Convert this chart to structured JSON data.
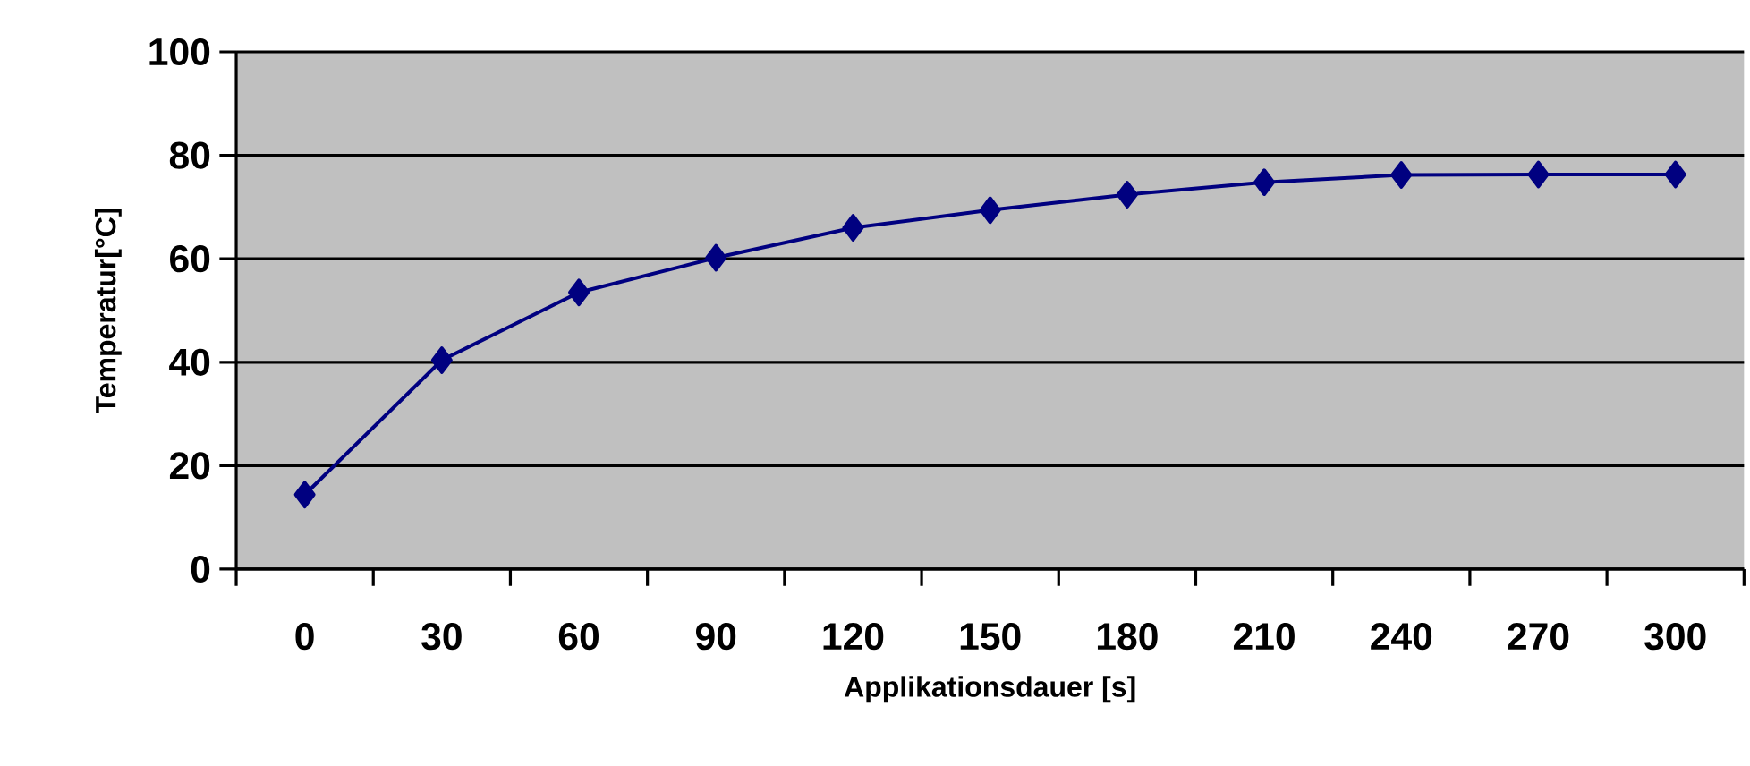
{
  "chart_data": {
    "type": "line",
    "xlabel": "Applikationsdauer [s]",
    "ylabel": "Temperatur[°C]",
    "categories": [
      "0",
      "30",
      "60",
      "90",
      "120",
      "150",
      "180",
      "210",
      "240",
      "270",
      "300"
    ],
    "series": [
      {
        "color": "#000080",
        "values": [
          14.4,
          40.4,
          53.5,
          60.2,
          66.0,
          69.4,
          72.4,
          74.8,
          76.2,
          76.3,
          76.3
        ]
      }
    ],
    "ylim": [
      0,
      100
    ],
    "yticks": [
      0,
      20,
      40,
      60,
      80,
      100
    ],
    "grid": "y",
    "marker": "diamond",
    "line_style": "solid"
  }
}
